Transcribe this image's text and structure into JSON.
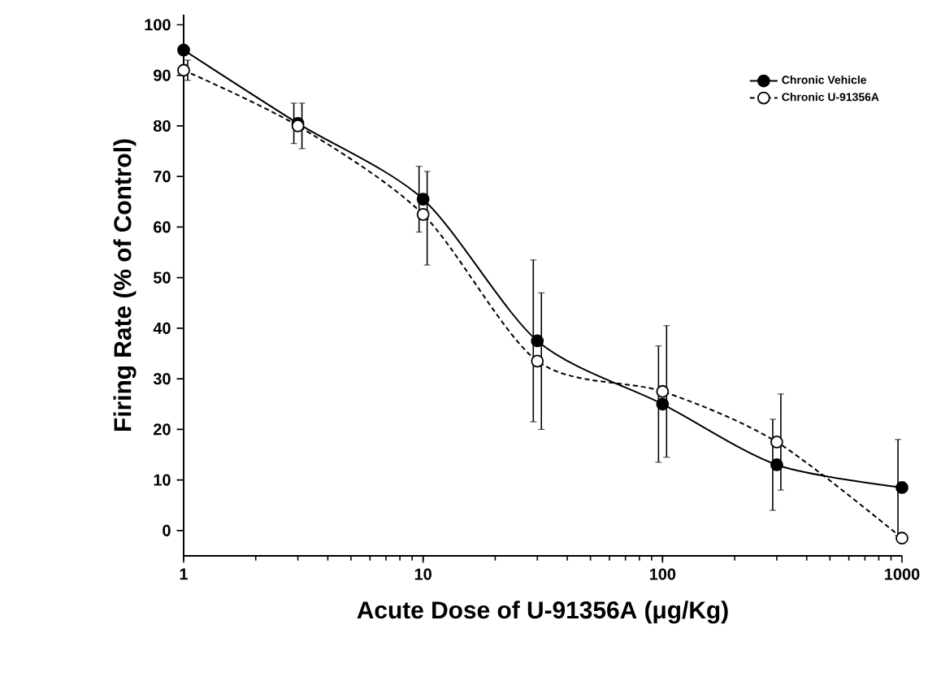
{
  "chart_data": {
    "type": "line",
    "xlabel": "Acute Dose of U-91356A (μg/Kg)",
    "ylabel": "Firing Rate (% of Control)",
    "x": [
      1,
      3,
      10,
      30,
      100,
      300,
      1000
    ],
    "series": [
      {
        "name": "Chronic Vehicle",
        "color": "#000000",
        "line_style": "solid",
        "values": [
          95,
          80.5,
          65.5,
          37.5,
          25,
          13,
          8.5
        ],
        "errors": [
          null,
          4,
          6.5,
          16,
          11.5,
          9,
          9.5
        ]
      },
      {
        "name": "Chronic U-91356A",
        "color": "#000000",
        "line_style": "dashed",
        "values": [
          91,
          80,
          62.5,
          33.5,
          27.5,
          17.5,
          -1.5
        ],
        "errors": [
          2,
          4.5,
          [
            52.5,
            71
          ],
          13.5,
          13,
          9.5,
          null
        ]
      }
    ],
    "log": "x",
    "xlim": [
      1,
      1000
    ],
    "xticks": [
      1,
      10,
      100,
      1000
    ],
    "ylim": [
      -5,
      102
    ],
    "yticks": [
      0,
      10,
      20,
      30,
      40,
      50,
      60,
      70,
      80,
      90,
      100
    ],
    "marker": "circle",
    "legend": "top right",
    "grid": false
  }
}
